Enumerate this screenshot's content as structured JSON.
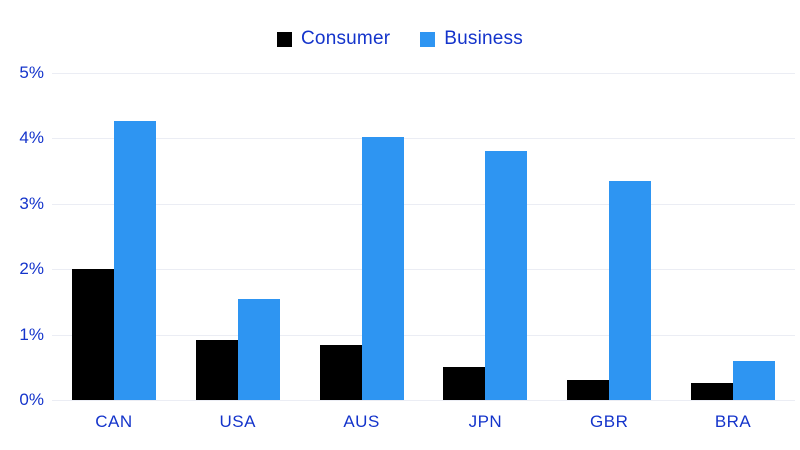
{
  "chart_data": {
    "type": "bar",
    "title": "",
    "xlabel": "",
    "ylabel": "",
    "categories": [
      "CAN",
      "USA",
      "AUS",
      "JPN",
      "GBR",
      "BRA"
    ],
    "series": [
      {
        "name": "Consumer",
        "color": "#000000",
        "values": [
          2.0,
          0.92,
          0.84,
          0.5,
          0.3,
          0.26
        ]
      },
      {
        "name": "Business",
        "color": "#2e95f2",
        "values": [
          4.27,
          1.55,
          4.02,
          3.8,
          3.35,
          0.6
        ]
      }
    ],
    "ylim": [
      0,
      5
    ],
    "yticks": [
      0,
      1,
      2,
      3,
      4,
      5
    ],
    "ytick_labels": [
      "0%",
      "1%",
      "2%",
      "3%",
      "4%",
      "5%"
    ],
    "grid": "horizontal",
    "legend_position": "top-center"
  },
  "styles": {
    "axis_text_color": "#1434cb",
    "gridline_color": "#ebedf4",
    "consumer_color": "#000000",
    "business_color": "#2e95f2",
    "background": "#ffffff"
  }
}
